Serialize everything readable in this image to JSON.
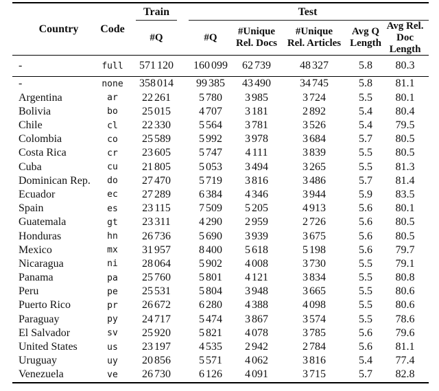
{
  "table": {
    "header": {
      "country": "Country",
      "code": "Code",
      "train_group": "Train",
      "test_group": "Test",
      "subs": [
        "#Q",
        "#Q",
        "#Unique\nRel. Docs",
        "#Unique\nRel. Articles",
        "Avg Q\nLength",
        "Avg Rel.\nDoc Length"
      ]
    },
    "summary_rows": [
      {
        "country": "-",
        "code": "full",
        "train_q": "571 120",
        "test_q": "160 099",
        "unique_rel_docs": "62 739",
        "unique_rel_articles": "48 327",
        "avg_q_length": "5.8",
        "avg_rel_doc_length": "80.3"
      }
    ],
    "rows": [
      {
        "country": "-",
        "code": "none",
        "train_q": "358 014",
        "test_q": "99 385",
        "unique_rel_docs": "43 490",
        "unique_rel_articles": "34 745",
        "avg_q_length": "5.8",
        "avg_rel_doc_length": "81.1"
      },
      {
        "country": "Argentina",
        "code": "ar",
        "train_q": "22 261",
        "test_q": "5 780",
        "unique_rel_docs": "3 985",
        "unique_rel_articles": "3 724",
        "avg_q_length": "5.5",
        "avg_rel_doc_length": "80.1"
      },
      {
        "country": "Bolivia",
        "code": "bo",
        "train_q": "25 015",
        "test_q": "4 707",
        "unique_rel_docs": "3 181",
        "unique_rel_articles": "2 892",
        "avg_q_length": "5.4",
        "avg_rel_doc_length": "80.4"
      },
      {
        "country": "Chile",
        "code": "cl",
        "train_q": "22 330",
        "test_q": "5 564",
        "unique_rel_docs": "3 781",
        "unique_rel_articles": "3 526",
        "avg_q_length": "5.4",
        "avg_rel_doc_length": "79.5"
      },
      {
        "country": "Colombia",
        "code": "co",
        "train_q": "25 589",
        "test_q": "5 992",
        "unique_rel_docs": "3 978",
        "unique_rel_articles": "3 684",
        "avg_q_length": "5.7",
        "avg_rel_doc_length": "80.5"
      },
      {
        "country": "Costa Rica",
        "code": "cr",
        "train_q": "23 605",
        "test_q": "5 747",
        "unique_rel_docs": "4 111",
        "unique_rel_articles": "3 839",
        "avg_q_length": "5.5",
        "avg_rel_doc_length": "80.5"
      },
      {
        "country": "Cuba",
        "code": "cu",
        "train_q": "21 805",
        "test_q": "5 053",
        "unique_rel_docs": "3 494",
        "unique_rel_articles": "3 265",
        "avg_q_length": "5.5",
        "avg_rel_doc_length": "81.3"
      },
      {
        "country": "Dominican Rep.",
        "code": "do",
        "train_q": "27 470",
        "test_q": "5 719",
        "unique_rel_docs": "3 816",
        "unique_rel_articles": "3 486",
        "avg_q_length": "5.7",
        "avg_rel_doc_length": "81.4"
      },
      {
        "country": "Ecuador",
        "code": "ec",
        "train_q": "27 289",
        "test_q": "6 384",
        "unique_rel_docs": "4 346",
        "unique_rel_articles": "3 944",
        "avg_q_length": "5.9",
        "avg_rel_doc_length": "83.5"
      },
      {
        "country": "Spain",
        "code": "es",
        "train_q": "23 115",
        "test_q": "7 509",
        "unique_rel_docs": "5 205",
        "unique_rel_articles": "4 913",
        "avg_q_length": "5.6",
        "avg_rel_doc_length": "80.1"
      },
      {
        "country": "Guatemala",
        "code": "gt",
        "train_q": "23 311",
        "test_q": "4 290",
        "unique_rel_docs": "2 959",
        "unique_rel_articles": "2 726",
        "avg_q_length": "5.6",
        "avg_rel_doc_length": "80.5"
      },
      {
        "country": "Honduras",
        "code": "hn",
        "train_q": "26 736",
        "test_q": "5 690",
        "unique_rel_docs": "3 939",
        "unique_rel_articles": "3 675",
        "avg_q_length": "5.6",
        "avg_rel_doc_length": "80.5"
      },
      {
        "country": "Mexico",
        "code": "mx",
        "train_q": "31 957",
        "test_q": "8 400",
        "unique_rel_docs": "5 618",
        "unique_rel_articles": "5 198",
        "avg_q_length": "5.6",
        "avg_rel_doc_length": "79.7"
      },
      {
        "country": "Nicaragua",
        "code": "ni",
        "train_q": "28 064",
        "test_q": "5 902",
        "unique_rel_docs": "4 008",
        "unique_rel_articles": "3 730",
        "avg_q_length": "5.5",
        "avg_rel_doc_length": "79.1"
      },
      {
        "country": "Panama",
        "code": "pa",
        "train_q": "25 760",
        "test_q": "5 801",
        "unique_rel_docs": "4 121",
        "unique_rel_articles": "3 834",
        "avg_q_length": "5.5",
        "avg_rel_doc_length": "80.8"
      },
      {
        "country": "Peru",
        "code": "pe",
        "train_q": "25 531",
        "test_q": "5 804",
        "unique_rel_docs": "3 948",
        "unique_rel_articles": "3 665",
        "avg_q_length": "5.5",
        "avg_rel_doc_length": "80.6"
      },
      {
        "country": "Puerto Rico",
        "code": "pr",
        "train_q": "26 672",
        "test_q": "6 280",
        "unique_rel_docs": "4 388",
        "unique_rel_articles": "4 098",
        "avg_q_length": "5.5",
        "avg_rel_doc_length": "80.6"
      },
      {
        "country": "Paraguay",
        "code": "py",
        "train_q": "24 717",
        "test_q": "5 474",
        "unique_rel_docs": "3 867",
        "unique_rel_articles": "3 574",
        "avg_q_length": "5.5",
        "avg_rel_doc_length": "78.6"
      },
      {
        "country": "El Salvador",
        "code": "sv",
        "train_q": "25 920",
        "test_q": "5 821",
        "unique_rel_docs": "4 078",
        "unique_rel_articles": "3 785",
        "avg_q_length": "5.6",
        "avg_rel_doc_length": "79.6"
      },
      {
        "country": "United States",
        "code": "us",
        "train_q": "23 197",
        "test_q": "4 535",
        "unique_rel_docs": "2 942",
        "unique_rel_articles": "2 784",
        "avg_q_length": "5.6",
        "avg_rel_doc_length": "81.1"
      },
      {
        "country": "Uruguay",
        "code": "uy",
        "train_q": "20 856",
        "test_q": "5 571",
        "unique_rel_docs": "4 062",
        "unique_rel_articles": "3 816",
        "avg_q_length": "5.4",
        "avg_rel_doc_length": "77.4"
      },
      {
        "country": "Venezuela",
        "code": "ve",
        "train_q": "26 730",
        "test_q": "6 126",
        "unique_rel_docs": "4 091",
        "unique_rel_articles": "3 715",
        "avg_q_length": "5.7",
        "avg_rel_doc_length": "82.8"
      }
    ]
  }
}
